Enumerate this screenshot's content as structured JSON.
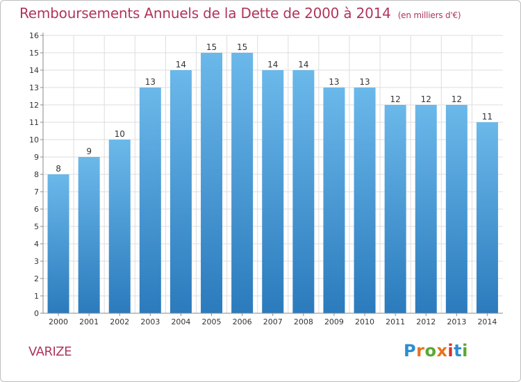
{
  "header": {
    "title": "Remboursements Annuels de la Dette de 2000 à 2014",
    "unit": "(en milliers d'€)"
  },
  "footer": {
    "commune": "VARIZE",
    "logo": [
      "P",
      "r",
      "o",
      "x",
      "i",
      "t",
      "i"
    ]
  },
  "colors": {
    "title": "#b0355a",
    "bar_top": "#6bb8ea",
    "bar_bottom": "#2b7bbd",
    "grid": "#dddddd",
    "axis": "#888888"
  },
  "chart_data": {
    "type": "bar",
    "title": "Remboursements Annuels de la Dette de 2000 à 2014",
    "subtitle": "(en milliers d'€)",
    "xlabel": "",
    "ylabel": "",
    "categories": [
      "2000",
      "2001",
      "2002",
      "2003",
      "2004",
      "2005",
      "2006",
      "2007",
      "2008",
      "2009",
      "2010",
      "2011",
      "2012",
      "2013",
      "2014"
    ],
    "values": [
      8,
      9,
      10,
      13,
      14,
      15,
      15,
      14,
      14,
      13,
      13,
      12,
      12,
      12,
      11
    ],
    "ylim": [
      0,
      16
    ],
    "yticks": [
      0,
      1,
      2,
      3,
      4,
      5,
      6,
      7,
      8,
      9,
      10,
      11,
      12,
      13,
      14,
      15,
      16
    ],
    "grid": true,
    "data_labels": true
  }
}
